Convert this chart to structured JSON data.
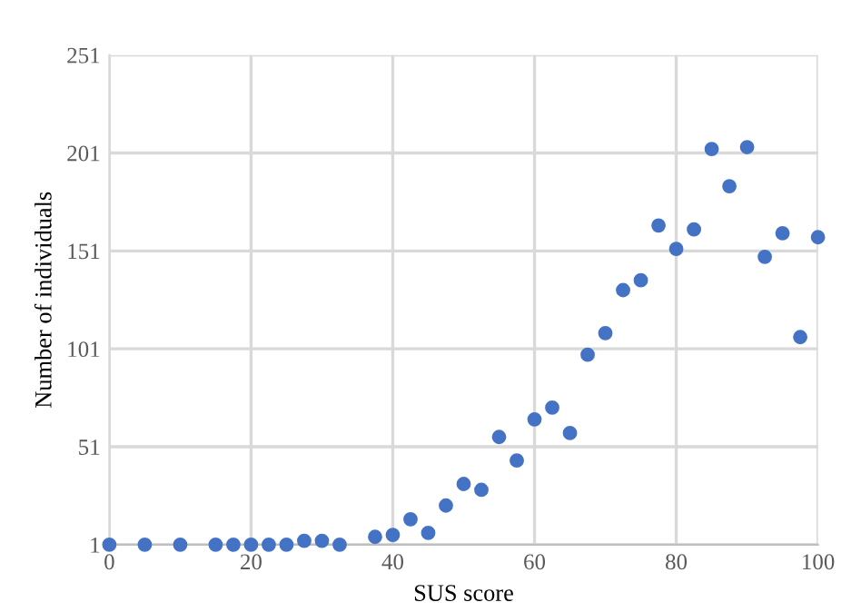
{
  "chart_data": {
    "type": "scatter",
    "xlabel": "SUS score",
    "ylabel": "Number of individuals",
    "x": [
      0,
      5,
      10,
      15,
      17.5,
      20,
      22.5,
      25,
      27.5,
      30,
      32.5,
      37.5,
      40,
      42.5,
      45,
      47.5,
      50,
      52.5,
      55,
      57.5,
      60,
      62.5,
      65,
      67.5,
      70,
      72.5,
      75,
      77.5,
      80,
      82.5,
      85,
      87.5,
      90,
      92.5,
      95,
      97.5,
      100
    ],
    "series": [
      {
        "color": "#4472c4",
        "values": [
          1,
          1,
          1,
          1,
          1,
          1,
          1,
          1,
          3,
          3,
          1,
          5,
          6,
          14,
          7,
          21,
          32,
          29,
          56,
          44,
          65,
          71,
          58,
          98,
          109,
          131,
          136,
          164,
          152,
          162,
          203,
          184,
          204,
          148,
          160,
          107,
          158
        ]
      }
    ],
    "xlim": [
      0,
      100
    ],
    "xticks": [
      0,
      20,
      40,
      60,
      80,
      100
    ],
    "ylim": [
      1,
      251
    ],
    "yticks": [
      1,
      51,
      101,
      151,
      201,
      251
    ],
    "grid": true,
    "marker": "circle"
  }
}
